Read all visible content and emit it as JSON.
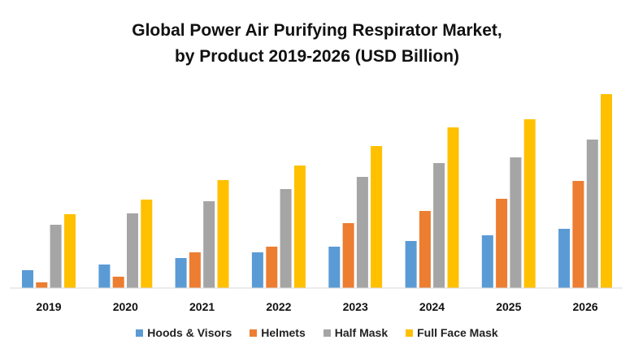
{
  "chart_data": {
    "type": "bar",
    "title_line1": "Global Power Air Purifying Respirator Market,",
    "title_line2": "by Product 2019-2026 (USD Billion)",
    "xlabel": "",
    "ylabel": "",
    "categories": [
      "2019",
      "2020",
      "2021",
      "2022",
      "2023",
      "2024",
      "2025",
      "2026"
    ],
    "ylim": [
      0,
      24
    ],
    "grid": false,
    "legend_position": "bottom",
    "series": [
      {
        "name": "Hoods & Visors",
        "color": "#5B9BD5",
        "values": [
          2.2,
          2.9,
          3.7,
          4.4,
          5.1,
          5.8,
          6.5,
          7.3
        ]
      },
      {
        "name": "Helmets",
        "color": "#ED7D31",
        "values": [
          0.7,
          1.4,
          4.4,
          5.1,
          8.0,
          9.5,
          11.0,
          13.2
        ]
      },
      {
        "name": "Half Mask",
        "color": "#A5A5A5",
        "values": [
          7.8,
          9.2,
          10.7,
          12.2,
          13.7,
          15.4,
          16.1,
          18.3
        ]
      },
      {
        "name": "Full Face Mask",
        "color": "#FFC000",
        "values": [
          9.1,
          10.9,
          13.3,
          15.1,
          17.5,
          19.8,
          20.8,
          23.9
        ]
      }
    ]
  }
}
